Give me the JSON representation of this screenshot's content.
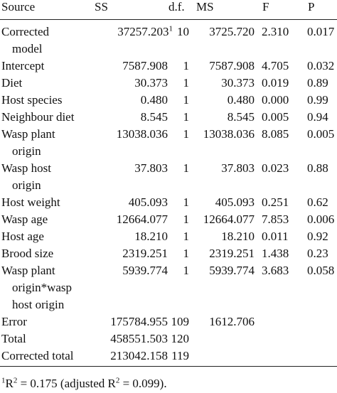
{
  "table": {
    "header": [
      "Source",
      "SS",
      "d.f.",
      "MS",
      "F",
      "P"
    ],
    "rows": [
      {
        "label": [
          "Corrected",
          "model"
        ],
        "ss": "37257.203",
        "ss_note": "1",
        "df": "10",
        "ms": "3725.720",
        "f": "2.310",
        "p": "0.017"
      },
      {
        "label": [
          "Intercept"
        ],
        "ss": "7587.908",
        "df": "1",
        "ms": "7587.908",
        "f": "4.705",
        "p": "0.032"
      },
      {
        "label": [
          "Diet"
        ],
        "ss": "30.373",
        "df": "1",
        "ms": "30.373",
        "f": "0.019",
        "p": "0.89"
      },
      {
        "label": [
          "Host species"
        ],
        "ss": "0.480",
        "df": "1",
        "ms": "0.480",
        "f": "0.000",
        "p": "0.99"
      },
      {
        "label": [
          "Neighbour diet"
        ],
        "ss": "8.545",
        "df": "1",
        "ms": "8.545",
        "f": "0.005",
        "p": "0.94"
      },
      {
        "label": [
          "Wasp plant",
          "origin"
        ],
        "ss": "13038.036",
        "df": "1",
        "ms": "13038.036",
        "f": "8.085",
        "p": "0.005"
      },
      {
        "label": [
          "Wasp host",
          "origin"
        ],
        "ss": "37.803",
        "df": "1",
        "ms": "37.803",
        "f": "0.023",
        "p": "0.88"
      },
      {
        "label": [
          "Host weight"
        ],
        "ss": "405.093",
        "df": "1",
        "ms": "405.093",
        "f": "0.251",
        "p": "0.62"
      },
      {
        "label": [
          "Wasp age"
        ],
        "ss": "12664.077",
        "df": "1",
        "ms": "12664.077",
        "f": "7.853",
        "p": "0.006"
      },
      {
        "label": [
          "Host age"
        ],
        "ss": "18.210",
        "df": "1",
        "ms": "18.210",
        "f": "0.011",
        "p": "0.92"
      },
      {
        "label": [
          "Brood size"
        ],
        "ss": "2319.251",
        "df": "1",
        "ms": "2319.251",
        "f": "1.438",
        "p": "0.23"
      },
      {
        "label": [
          "Wasp plant",
          "origin*wasp",
          "host origin"
        ],
        "ss": "5939.774",
        "df": "1",
        "ms": "5939.774",
        "f": "3.683",
        "p": "0.058"
      },
      {
        "label": [
          "Error"
        ],
        "ss": "175784.955",
        "df": "109",
        "ms": "1612.706",
        "f": null,
        "p": null
      },
      {
        "label": [
          "Total"
        ],
        "ss": "458551.503",
        "df": "120",
        "ms": null,
        "f": null,
        "p": null
      },
      {
        "label": [
          "Corrected total"
        ],
        "ss": "213042.158",
        "df": "119",
        "ms": null,
        "f": null,
        "p": null
      }
    ],
    "footnote": {
      "marker": "1",
      "parts": [
        "R",
        "2",
        " = 0.175 (adjusted R",
        "2",
        " = 0.099)."
      ]
    }
  }
}
